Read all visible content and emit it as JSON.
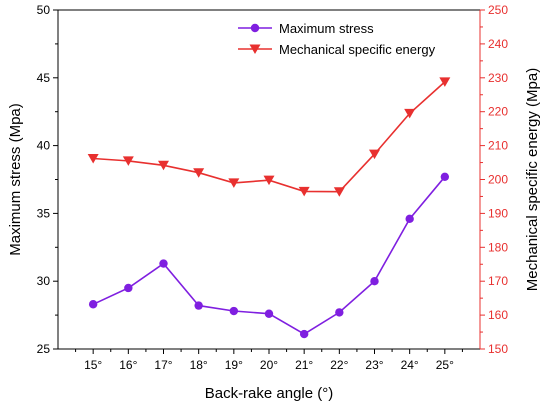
{
  "chart_data": {
    "type": "line",
    "xlabel": "Back-rake angle (°)",
    "categories": [
      "15°",
      "16°",
      "17°",
      "18°",
      "19°",
      "20°",
      "21°",
      "22°",
      "23°",
      "24°",
      "25°"
    ],
    "y_left": {
      "label": "Maximum stress (Mpa)",
      "ylim": [
        25,
        50
      ],
      "ticks": [
        25,
        30,
        35,
        40,
        45,
        50
      ],
      "color": "#000000"
    },
    "y_right": {
      "label": "Mechanical specific energy (Mpa)",
      "ylim": [
        150,
        250
      ],
      "ticks": [
        150,
        160,
        170,
        180,
        190,
        200,
        210,
        220,
        230,
        240,
        250
      ],
      "color": "#e8302f"
    },
    "series": [
      {
        "name": "Maximum stress",
        "axis": "left",
        "marker": "circle",
        "color": "#7f1fe0",
        "values": [
          28.3,
          29.5,
          31.3,
          28.2,
          27.8,
          27.6,
          26.1,
          27.7,
          30.0,
          34.6,
          37.7
        ]
      },
      {
        "name": "Mechanical specific energy",
        "axis": "right",
        "marker": "triangle-down",
        "color": "#e8302f",
        "values": [
          206.2,
          205.5,
          204.2,
          202.0,
          199.0,
          199.8,
          196.5,
          196.4,
          207.5,
          219.5,
          228.8
        ]
      }
    ],
    "legend": {
      "position": "top-right"
    },
    "grid": false
  }
}
